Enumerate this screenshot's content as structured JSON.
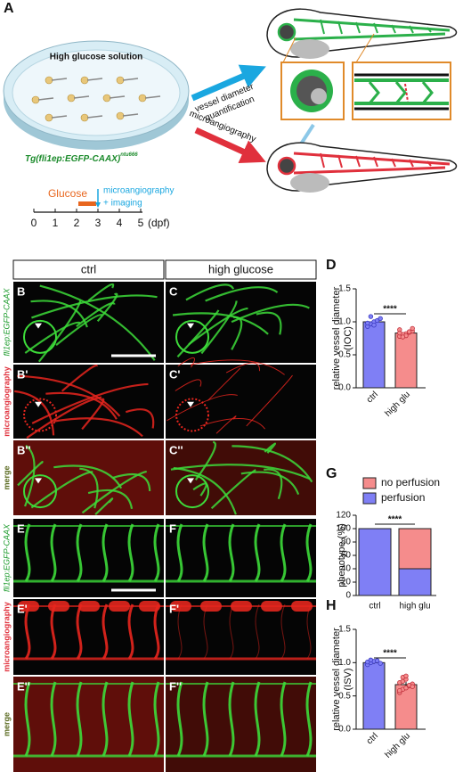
{
  "panel_a": {
    "letter": "A",
    "dish_label": "High glucose solution",
    "line_name": "Tg(fli1ep:EGFP-CAAX)",
    "line_allele": "ntu666",
    "arrow_top": [
      "vessel diameter",
      "quantification"
    ],
    "arrow_bottom": "microangiography",
    "treatment": "Glucose",
    "readout": [
      "microangiography",
      "+ imaging"
    ],
    "timeline_ticks": [
      0,
      1,
      2,
      3,
      4,
      5
    ],
    "timeline_unit": "(dpf)"
  },
  "images": {
    "columns": [
      "ctrl",
      "high glucose"
    ],
    "rows": [
      {
        "side_label": "fli1ep:EGFP-CAAX",
        "panels": [
          "B",
          "C"
        ]
      },
      {
        "side_label": "microangiography",
        "panels": [
          "B'",
          "C'"
        ]
      },
      {
        "side_label": "merge",
        "panels": [
          "B''",
          "C''"
        ]
      },
      {
        "side_label": "fli1ep:EGFP-CAAX",
        "panels": [
          "E",
          "F"
        ]
      },
      {
        "side_label": "microangiography",
        "panels": [
          "E'",
          "F'"
        ]
      },
      {
        "side_label": "merge",
        "panels": [
          "E''",
          "F''"
        ]
      }
    ]
  },
  "chart_data": [
    {
      "panel": "D",
      "type": "bar",
      "ylabel_lines": [
        "relative vessel diameter",
        "(IOC)"
      ],
      "categories": [
        "ctrl",
        "high glu"
      ],
      "values": [
        1.0,
        0.83
      ],
      "errors": [
        0.03,
        0.02
      ],
      "colors": [
        "#7f7ff5",
        "#f58c8c"
      ],
      "points": [
        [
          0.93,
          0.97,
          1.0,
          1.02,
          1.05,
          0.98,
          1.08,
          0.95
        ],
        [
          0.78,
          0.8,
          0.82,
          0.84,
          0.86,
          0.88,
          0.81,
          0.79,
          0.85,
          0.9,
          0.83,
          0.77
        ]
      ],
      "ylim": [
        0,
        1.5
      ],
      "yticks": [
        {
          "value": 0,
          "label": "0.0"
        },
        0.5,
        {
          "value": 1,
          "label": "1.0"
        },
        1.5
      ],
      "significance": "****"
    },
    {
      "panel": "G",
      "type": "stacked_bar",
      "ylabel_lines": [
        "phenotype (%)"
      ],
      "categories": [
        "ctrl",
        "high glu"
      ],
      "series": [
        {
          "name": "no perfusion",
          "color": "#f58c8c",
          "values": [
            0,
            60
          ]
        },
        {
          "name": "perfusion",
          "color": "#7f7ff5",
          "values": [
            100,
            40
          ]
        }
      ],
      "ylim": [
        0,
        120
      ],
      "yticks": [
        0,
        20,
        40,
        60,
        80,
        100,
        120
      ],
      "significance": "****"
    },
    {
      "panel": "H",
      "type": "bar",
      "ylabel_lines": [
        "relative vessel diameter",
        "(ISV)"
      ],
      "categories": [
        "ctrl",
        "high glu"
      ],
      "values": [
        1.0,
        0.67
      ],
      "errors": [
        0.02,
        0.04
      ],
      "colors": [
        "#7f7ff5",
        "#f58c8c"
      ],
      "points": [
        [
          0.97,
          1.0,
          1.02,
          1.03,
          0.99,
          1.01,
          1.04
        ],
        [
          0.55,
          0.6,
          0.62,
          0.65,
          0.68,
          0.7,
          0.72,
          0.75,
          0.66,
          0.64,
          0.58,
          0.78,
          0.8
        ]
      ],
      "ylim": [
        0,
        1.5
      ],
      "yticks": [
        {
          "value": 0,
          "label": "0.0"
        },
        0.5,
        {
          "value": 1,
          "label": "1.0"
        },
        1.5
      ],
      "significance": "****"
    }
  ]
}
